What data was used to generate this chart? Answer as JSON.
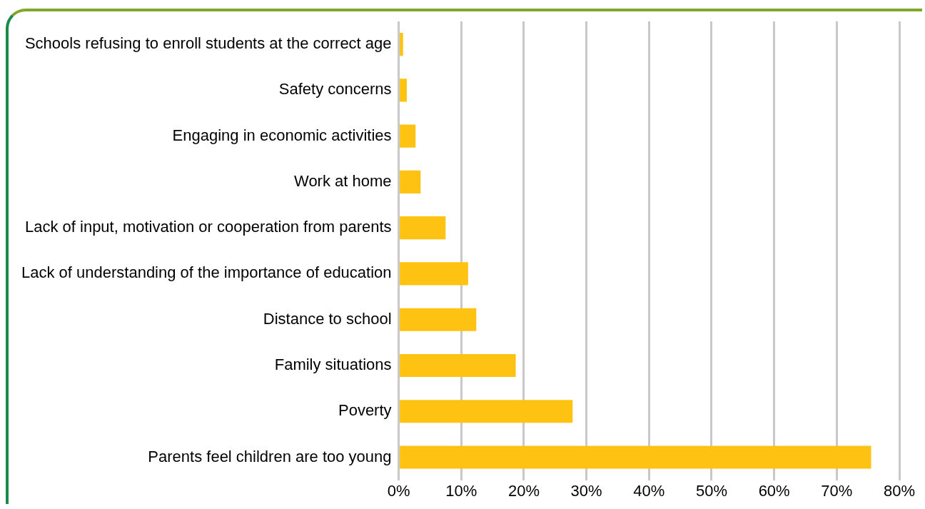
{
  "chart_data": {
    "type": "bar",
    "orientation": "horizontal",
    "categories": [
      "Schools refusing to enroll students at the correct age",
      "Safety concerns",
      "Engaging in economic activities",
      "Work at home",
      "Lack of input, motivation or cooperation from parents",
      "Lack of understanding of the importance of education",
      "Distance to school",
      "Family situations",
      "Poverty",
      "Parents feel children are too young"
    ],
    "values": [
      0.7,
      1.3,
      2.7,
      3.5,
      7.5,
      11.1,
      12.4,
      18.7,
      27.8,
      75.5
    ],
    "color": "#fec312",
    "xlim": [
      0,
      80
    ],
    "xticks": [
      {
        "value": 0,
        "label": "0%"
      },
      {
        "value": 10,
        "label": "10%"
      },
      {
        "value": 20,
        "label": "20%"
      },
      {
        "value": 30,
        "label": "30%"
      },
      {
        "value": 40,
        "label": "40%"
      },
      {
        "value": 50,
        "label": "50%"
      },
      {
        "value": 60,
        "label": "60%"
      },
      {
        "value": 70,
        "label": "70%"
      },
      {
        "value": 80,
        "label": "80%"
      }
    ],
    "grid": "x"
  }
}
